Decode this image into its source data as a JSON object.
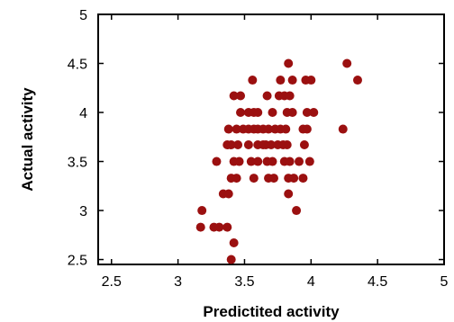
{
  "chart_data": {
    "type": "scatter",
    "title": "",
    "xlabel": "Predictited activity",
    "ylabel": "Actual activity",
    "xlim": [
      2.4,
      5.0
    ],
    "ylim": [
      2.45,
      5.0
    ],
    "xticks": [
      2.5,
      3,
      3.5,
      4,
      4.5,
      5
    ],
    "yticks": [
      2.5,
      3,
      3.5,
      4,
      4.5,
      5
    ],
    "xtick_labels": [
      "2.5",
      "3",
      "3.5",
      "4",
      "4.5",
      "5"
    ],
    "ytick_labels": [
      "2.5",
      "3",
      "3.5",
      "4",
      "4.5",
      "5"
    ],
    "grid": false,
    "legend": "none",
    "marker_color": "#9b1010",
    "points": [
      [
        3.17,
        2.83
      ],
      [
        3.18,
        3.0
      ],
      [
        3.27,
        2.83
      ],
      [
        3.31,
        2.83
      ],
      [
        3.37,
        2.83
      ],
      [
        3.4,
        2.5
      ],
      [
        3.42,
        2.67
      ],
      [
        3.34,
        3.17
      ],
      [
        3.38,
        3.17
      ],
      [
        3.29,
        3.5
      ],
      [
        3.4,
        3.33
      ],
      [
        3.44,
        3.33
      ],
      [
        3.42,
        3.5
      ],
      [
        3.46,
        3.5
      ],
      [
        3.37,
        3.67
      ],
      [
        3.4,
        3.67
      ],
      [
        3.45,
        3.67
      ],
      [
        3.38,
        3.83
      ],
      [
        3.44,
        3.83
      ],
      [
        3.49,
        3.83
      ],
      [
        3.42,
        4.17
      ],
      [
        3.47,
        4.17
      ],
      [
        3.47,
        4.0
      ],
      [
        3.53,
        4.0
      ],
      [
        3.57,
        4.0
      ],
      [
        3.6,
        4.0
      ],
      [
        3.53,
        3.83
      ],
      [
        3.57,
        3.83
      ],
      [
        3.6,
        3.83
      ],
      [
        3.53,
        3.67
      ],
      [
        3.6,
        3.67
      ],
      [
        3.64,
        3.67
      ],
      [
        3.55,
        3.5
      ],
      [
        3.6,
        3.5
      ],
      [
        3.57,
        3.33
      ],
      [
        3.56,
        4.33
      ],
      [
        3.64,
        3.83
      ],
      [
        3.68,
        3.83
      ],
      [
        3.66,
        3.67
      ],
      [
        3.7,
        3.67
      ],
      [
        3.67,
        3.5
      ],
      [
        3.71,
        3.5
      ],
      [
        3.68,
        3.33
      ],
      [
        3.72,
        3.33
      ],
      [
        3.67,
        4.17
      ],
      [
        3.71,
        4.0
      ],
      [
        3.75,
        3.67
      ],
      [
        3.79,
        3.67
      ],
      [
        3.82,
        3.67
      ],
      [
        3.73,
        3.83
      ],
      [
        3.77,
        3.83
      ],
      [
        3.81,
        3.83
      ],
      [
        3.76,
        4.17
      ],
      [
        3.8,
        4.17
      ],
      [
        3.84,
        4.17
      ],
      [
        3.82,
        4.0
      ],
      [
        3.86,
        4.0
      ],
      [
        3.8,
        3.5
      ],
      [
        3.84,
        3.5
      ],
      [
        3.83,
        3.33
      ],
      [
        3.87,
        3.33
      ],
      [
        3.83,
        3.17
      ],
      [
        3.89,
        3.0
      ],
      [
        3.77,
        4.33
      ],
      [
        3.83,
        4.5
      ],
      [
        3.86,
        4.33
      ],
      [
        3.94,
        3.83
      ],
      [
        3.97,
        3.83
      ],
      [
        3.95,
        3.67
      ],
      [
        3.91,
        3.5
      ],
      [
        3.99,
        3.5
      ],
      [
        3.94,
        3.33
      ],
      [
        3.97,
        4.0
      ],
      [
        4.02,
        4.0
      ],
      [
        3.96,
        4.33
      ],
      [
        4.0,
        4.33
      ],
      [
        4.24,
        3.83
      ],
      [
        4.27,
        4.5
      ],
      [
        4.35,
        4.33
      ]
    ]
  }
}
